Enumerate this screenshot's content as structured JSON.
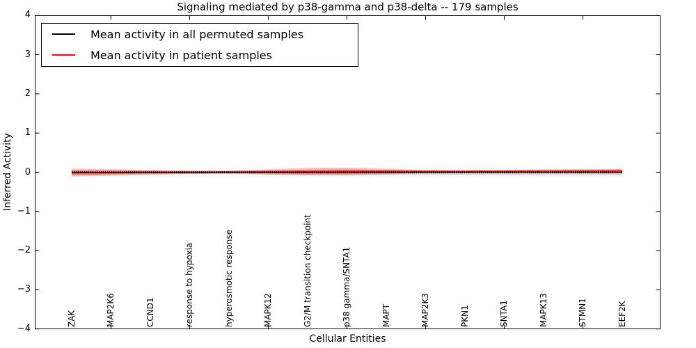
{
  "chart_data": {
    "type": "line",
    "title": "Signaling mediated by p38-gamma and p38-delta -- 179 samples",
    "xlabel": "Cellular Entities",
    "ylabel": "Inferred Activity",
    "ylim": [
      -4,
      4
    ],
    "grid": false,
    "legend_position": "upper left",
    "categories": [
      "ZAK",
      "MAP2K6",
      "CCND1",
      "response to hypoxia",
      "hyperosmotic response",
      "MAPK12",
      "G2/M transition checkpoint",
      "p38 gamma/SNTA1",
      "MAPT",
      "MAP2K3",
      "PKN1",
      "SNTA1",
      "MAPK13",
      "STMN1",
      "EEF2K"
    ],
    "yticks": {
      "values": [
        4,
        3,
        2,
        1,
        0,
        -1,
        -2,
        -3,
        -4
      ],
      "labels": [
        "4",
        "3",
        "2",
        "1",
        "0",
        "−1",
        "−2",
        "−3",
        "−4"
      ]
    },
    "series": [
      {
        "name": "Mean activity in all permuted samples",
        "color": "#000000",
        "style": "dashed",
        "values": [
          0,
          0,
          0,
          0,
          0,
          0,
          0,
          0,
          0,
          0,
          0,
          0,
          0,
          0,
          0
        ]
      },
      {
        "name": "Mean activity in patient samples",
        "color": "#ff0000",
        "style": "solid",
        "values": [
          -0.01,
          -0.005,
          0.0,
          0.0,
          0.005,
          0.01,
          0.015,
          0.02,
          0.02,
          0.02,
          0.02,
          0.025,
          0.03,
          0.03,
          0.035
        ]
      }
    ],
    "bands": [
      {
        "name": "permuted-samples-std-band",
        "color": "#999999",
        "opacity": 0.38,
        "center": [
          -0.01,
          -0.01,
          -0.01,
          -0.01,
          -0.01,
          -0.01,
          -0.01,
          -0.01,
          -0.01,
          -0.01,
          -0.01,
          -0.01,
          -0.01,
          -0.01,
          -0.01
        ],
        "halfwidth": [
          0.055,
          0.05,
          0.045,
          0.04,
          0.04,
          0.05,
          0.06,
          0.065,
          0.065,
          0.06,
          0.06,
          0.06,
          0.065,
          0.065,
          0.07
        ]
      },
      {
        "name": "patient-samples-std-band-outer",
        "color": "#ff0000",
        "opacity": 0.25,
        "center": [
          -0.01,
          -0.005,
          0.0,
          0.0,
          0.005,
          0.01,
          0.015,
          0.02,
          0.02,
          0.02,
          0.02,
          0.025,
          0.03,
          0.03,
          0.035
        ],
        "halfwidth": [
          0.1,
          0.085,
          0.06,
          0.045,
          0.035,
          0.065,
          0.095,
          0.1,
          0.07,
          0.04,
          0.035,
          0.035,
          0.04,
          0.05,
          0.055
        ]
      },
      {
        "name": "patient-samples-std-band-inner",
        "color": "#ff0000",
        "opacity": 0.3,
        "center": [
          -0.01,
          -0.005,
          0.0,
          0.0,
          0.005,
          0.01,
          0.015,
          0.02,
          0.02,
          0.02,
          0.02,
          0.025,
          0.03,
          0.03,
          0.035
        ],
        "halfwidth": [
          0.055,
          0.047,
          0.033,
          0.025,
          0.019,
          0.036,
          0.052,
          0.055,
          0.039,
          0.022,
          0.019,
          0.019,
          0.022,
          0.028,
          0.03
        ]
      }
    ]
  }
}
